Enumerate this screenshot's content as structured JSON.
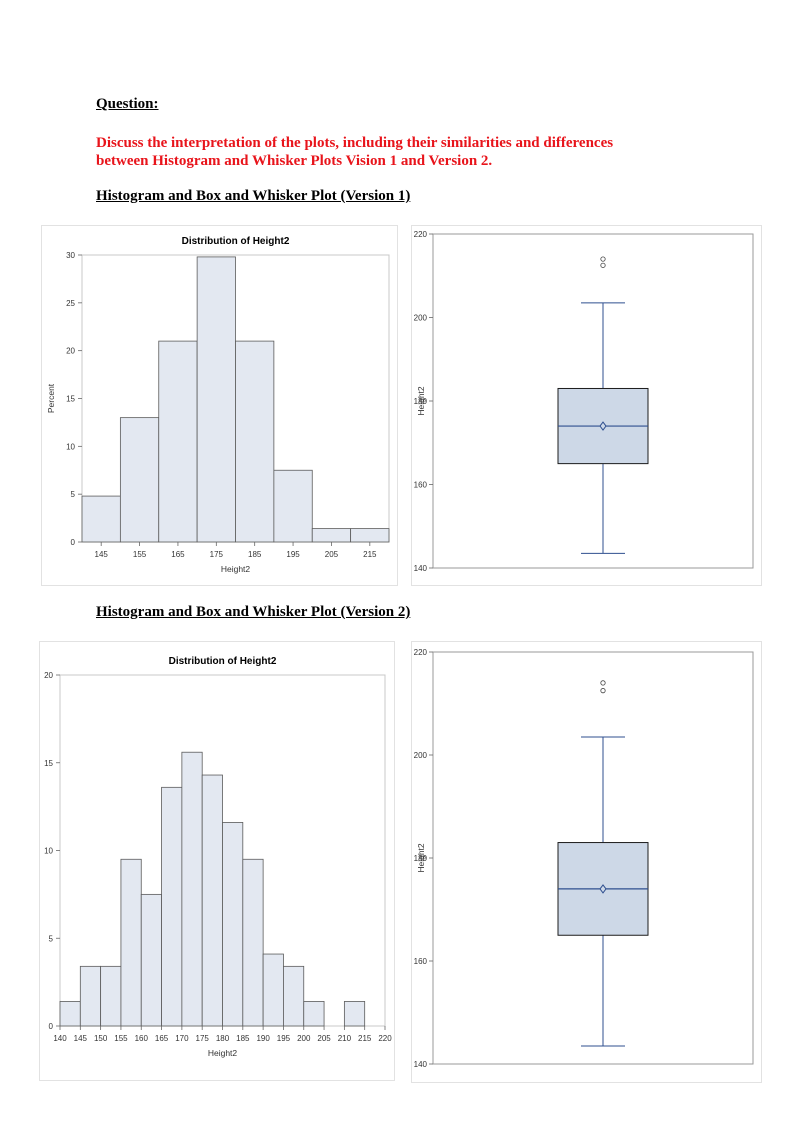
{
  "question": {
    "label": "Question:",
    "text_line1": "Discuss the interpretation of the plots, including their similarities and differences",
    "text_line2": "between Histogram and Whisker Plots Vision 1 and Version 2."
  },
  "headings": {
    "version1": "Histogram and Box and Whisker Plot (Version 1)",
    "version2": "Histogram and Box and Whisker Plot (Version 2)"
  },
  "colors": {
    "text_red": "#e8141b",
    "bar_fill": "#e3e8f1",
    "box_fill": "#cdd8e7",
    "box_line": "#2f4f8f"
  },
  "chart_data": [
    {
      "id": "hist1",
      "type": "bar",
      "title": "Distribution of Height2",
      "xlabel": "Height2",
      "ylabel": "Percent",
      "bin_start": 140,
      "bin_width": 10,
      "values": [
        4.8,
        13,
        21,
        29.8,
        21,
        7.5,
        1.4,
        1.4
      ],
      "x_ticks": [
        "145",
        "155",
        "165",
        "175",
        "185",
        "195",
        "205",
        "215"
      ],
      "y_ticks": [
        "0",
        "5",
        "10",
        "15",
        "20",
        "25",
        "30"
      ],
      "xlim": [
        140,
        220
      ],
      "ylim": [
        0,
        30
      ]
    },
    {
      "id": "box1",
      "type": "box",
      "ylabel": "Height2",
      "min": 143.5,
      "q1": 165,
      "median": 174,
      "mean": 174,
      "q3": 183,
      "max": 203.5,
      "outliers": [
        212.5,
        214
      ],
      "y_ticks": [
        "140",
        "160",
        "180",
        "200",
        "220"
      ],
      "ylim": [
        140,
        220
      ]
    },
    {
      "id": "hist2",
      "type": "bar",
      "title": "Distribution of Height2",
      "xlabel": "Height2",
      "ylabel": "",
      "bin_start": 140,
      "bin_width": 5,
      "values": [
        1.4,
        3.4,
        3.4,
        9.5,
        7.5,
        13.6,
        15.6,
        14.3,
        11.6,
        9.5,
        4.1,
        3.4,
        1.4,
        0,
        1.4,
        0
      ],
      "x_ticks": [
        "140",
        "145",
        "150",
        "155",
        "160",
        "165",
        "170",
        "175",
        "180",
        "185",
        "190",
        "195",
        "200",
        "205",
        "210",
        "215",
        "220"
      ],
      "y_ticks": [
        "0",
        "5",
        "10",
        "15",
        "20"
      ],
      "xlim": [
        140,
        220
      ],
      "ylim": [
        0,
        20
      ]
    },
    {
      "id": "box2",
      "type": "box",
      "ylabel": "Height2",
      "min": 143.5,
      "q1": 165,
      "median": 174,
      "mean": 174,
      "q3": 183,
      "max": 203.5,
      "outliers": [
        212.5,
        214
      ],
      "y_ticks": [
        "140",
        "160",
        "180",
        "200",
        "220"
      ],
      "ylim": [
        140,
        220
      ]
    }
  ]
}
